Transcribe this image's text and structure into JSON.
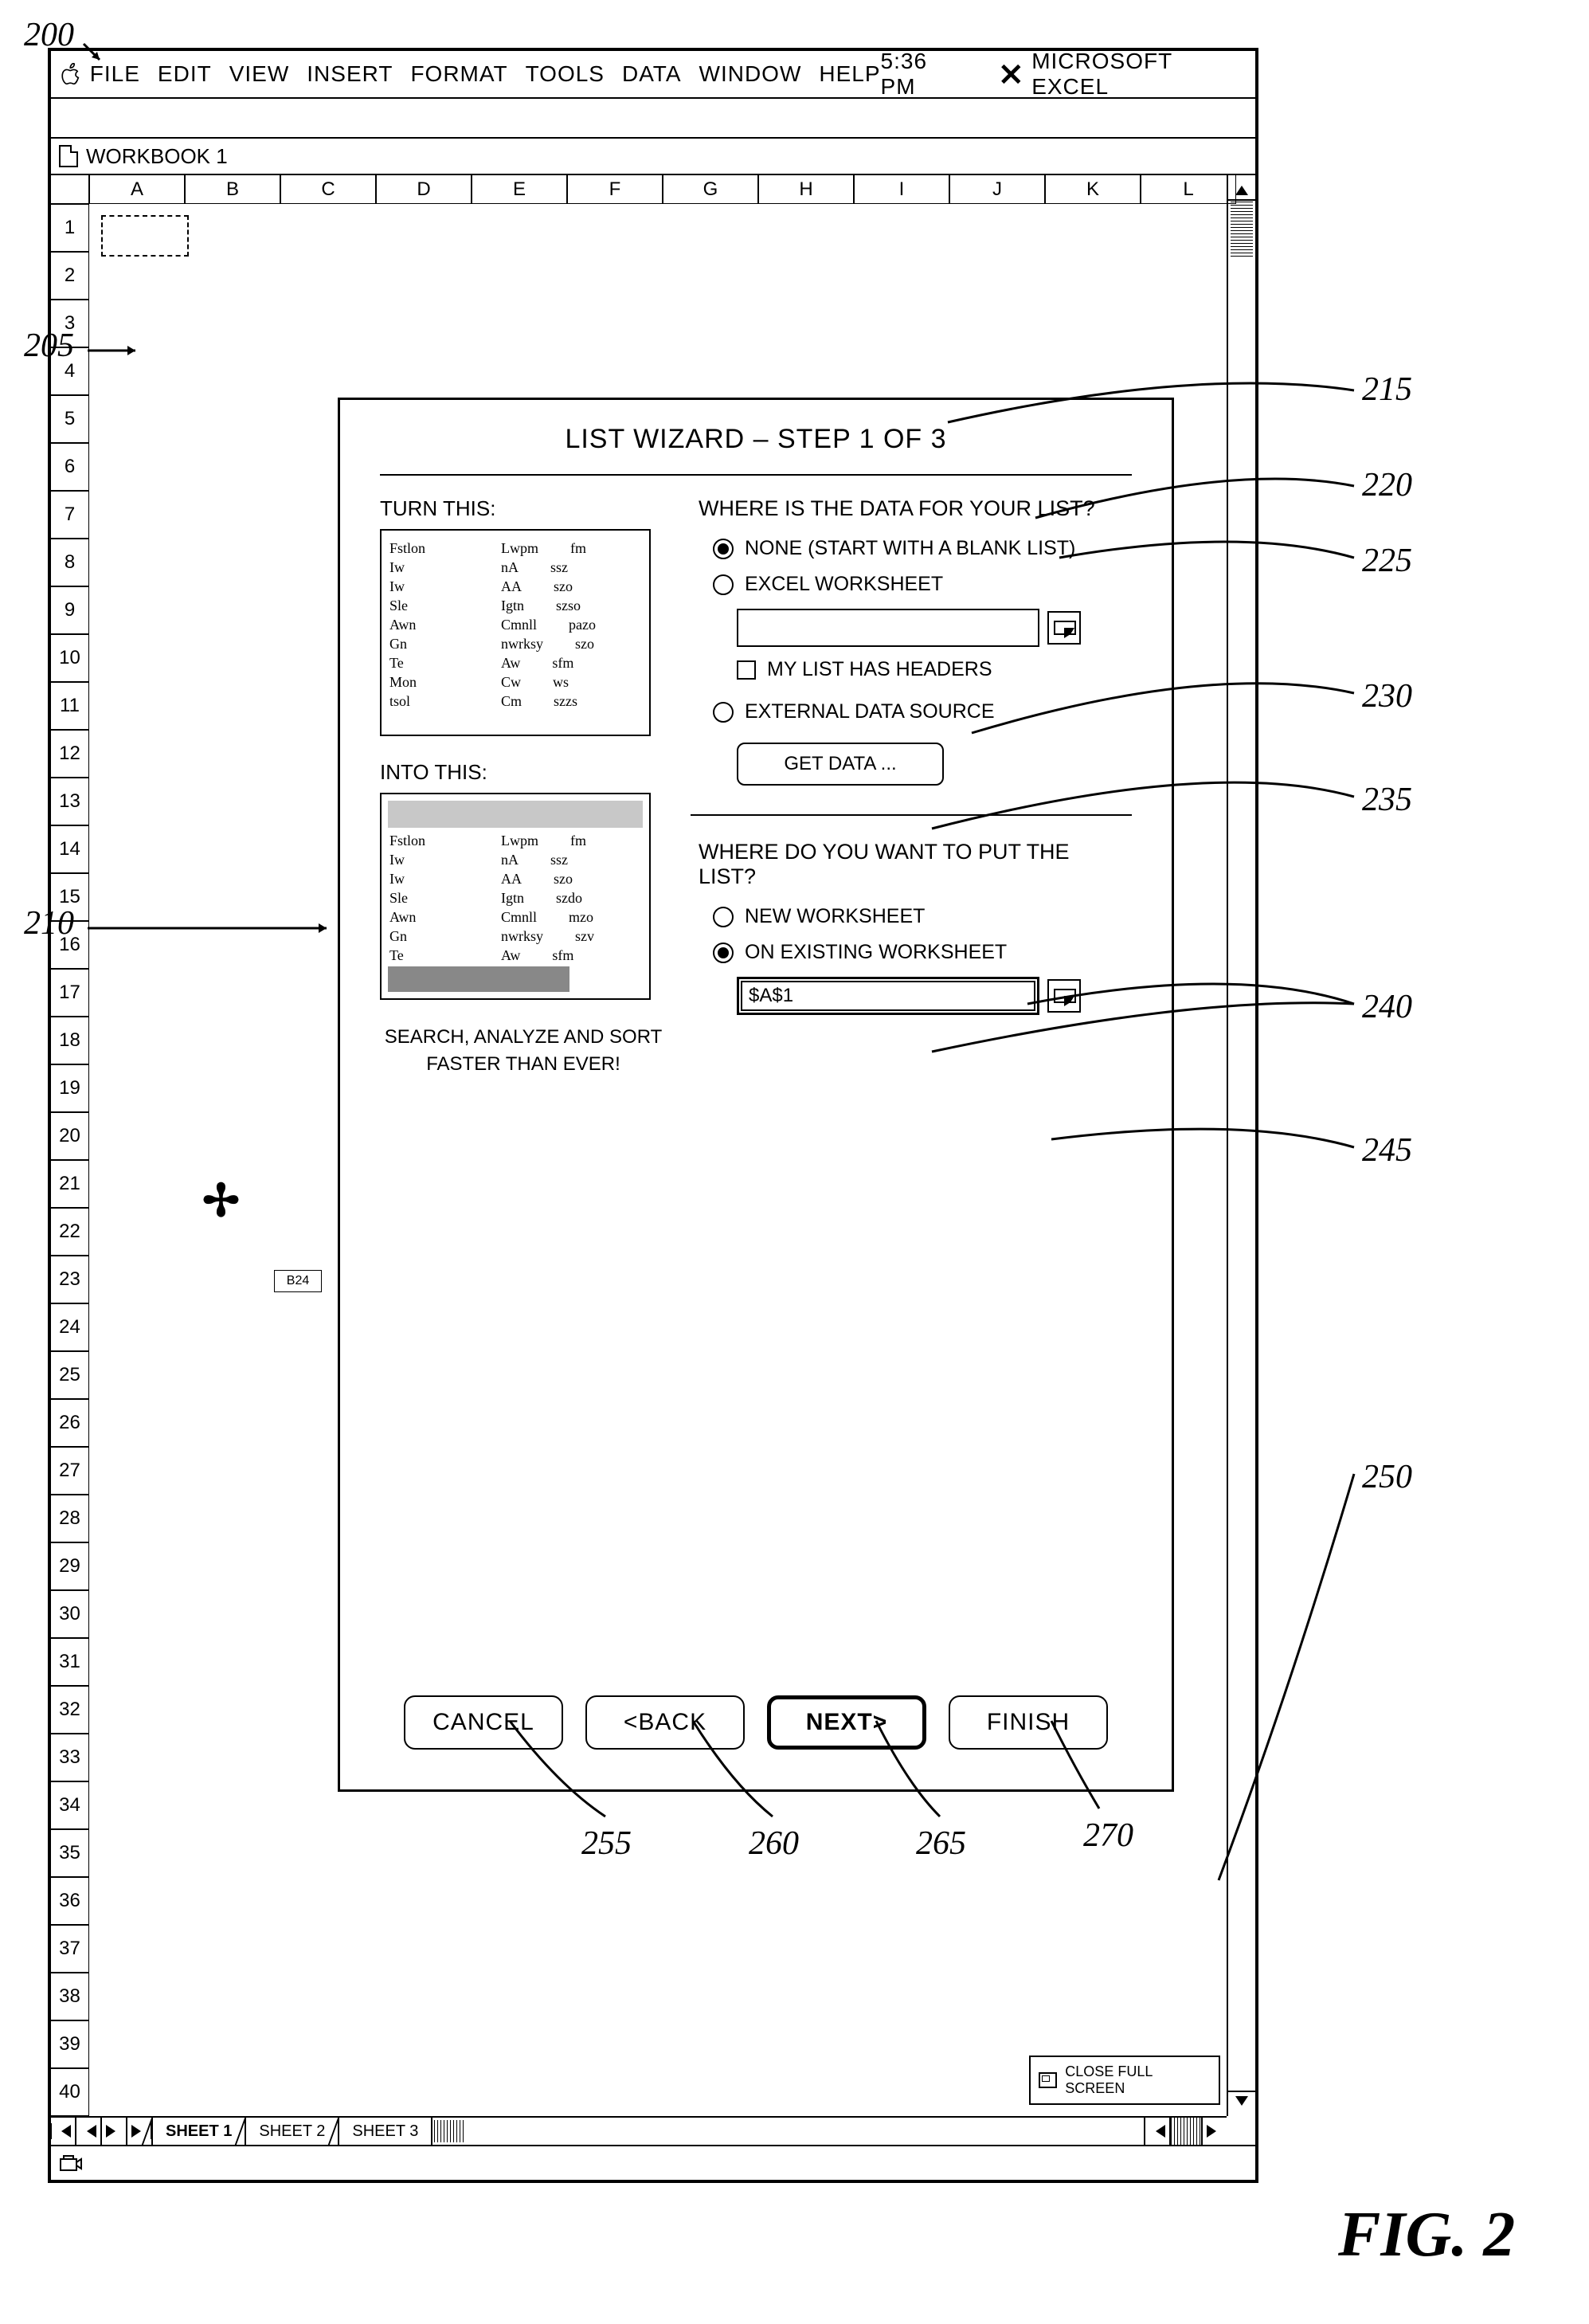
{
  "menubar": {
    "items": [
      "FILE",
      "EDIT",
      "VIEW",
      "INSERT",
      "FORMAT",
      "TOOLS",
      "DATA",
      "WINDOW",
      "HELP"
    ],
    "time": "5:36 PM",
    "app_name": "MICROSOFT EXCEL"
  },
  "workbook": {
    "title": "WORKBOOK 1"
  },
  "columns": [
    "A",
    "B",
    "C",
    "D",
    "E",
    "F",
    "G",
    "H",
    "I",
    "J",
    "K",
    "L"
  ],
  "row_count": 40,
  "cell_ref": "B24",
  "wizard": {
    "title": "LIST WIZARD – STEP 1 OF 3",
    "turn_label": "TURN THIS:",
    "into_label": "INTO THIS:",
    "sas_line1": "SEARCH, ANALYZE AND SORT",
    "sas_line2": "FASTER THAN EVER!",
    "q1": "WHERE IS THE DATA FOR YOUR LIST?",
    "opt_none": "NONE (START WITH A BLANK LIST)",
    "opt_excel": "EXCEL WORKSHEET",
    "chk_headers": "MY LIST HAS HEADERS",
    "opt_external": "EXTERNAL DATA SOURCE",
    "btn_getdata": "GET DATA ...",
    "q2": "WHERE DO YOU WANT TO PUT THE LIST?",
    "opt_newws": "NEW WORKSHEET",
    "opt_existing": "ON EXISTING WORKSHEET",
    "cell_value": "$A$1",
    "btn_cancel": "CANCEL",
    "btn_back": "<BACK",
    "btn_next": "NEXT>",
    "btn_finish": "FINISH"
  },
  "close_fs": "CLOSE FULL SCREEN",
  "sheets": [
    "SHEET 1",
    "SHEET 2",
    "SHEET 3"
  ],
  "refs": {
    "r200": "200",
    "r205": "205",
    "r210": "210",
    "r215": "215",
    "r220": "220",
    "r225": "225",
    "r230": "230",
    "r235": "235",
    "r240": "240",
    "r245": "245",
    "r250": "250",
    "r255": "255",
    "r260": "260",
    "r265": "265",
    "r270": "270"
  },
  "fig": "FIG. 2"
}
